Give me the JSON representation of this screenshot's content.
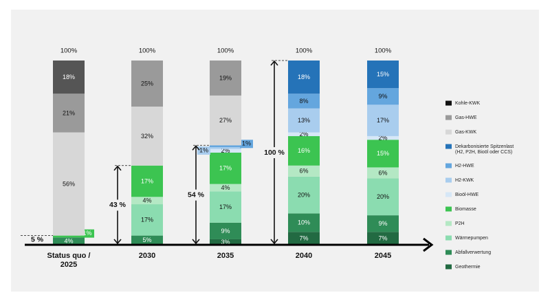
{
  "colors": {
    "Kohle-KWK": "#111111",
    "Gas-HWE": "#9a9a9a",
    "Gas-KWK": "#d7d7d7",
    "Dekarbonisierte Spitzenlast": "#2573b8",
    "H2-HWE": "#64a6de",
    "H2-KWK": "#a9cdee",
    "Bioöl-HWE": "#d6e7f7",
    "Biomasse": "#3cc451",
    "P2H": "#b4e8c4",
    "Wärmepumpen": "#8bdcb0",
    "Abfallverwertung": "#2f8c57",
    "Geothermie": "#226a42",
    "top_segment_dark": "#555555"
  },
  "chart_data": {
    "type": "bar",
    "stacked": true,
    "categories": [
      "Status quo / 2025",
      "2030",
      "2035",
      "2040",
      "2045"
    ],
    "totals": [
      "100%",
      "100%",
      "100%",
      "100%",
      "100%"
    ],
    "ylim": [
      0,
      100
    ],
    "grid": false,
    "legend_position": "right",
    "legend": [
      {
        "name": "Kohle-KWK",
        "color_key": "Kohle-KWK"
      },
      {
        "name": "Gas-HWE",
        "color_key": "Gas-HWE"
      },
      {
        "name": "Gas-KWK",
        "color_key": "Gas-KWK"
      },
      {
        "name": "Dekarbonisierte Spitzenlast",
        "line2": "(H2, P2H, Bioöl oder CCS)",
        "color_key": "Dekarbonisierte Spitzenlast"
      },
      {
        "name": "H2-HWE",
        "color_key": "H2-HWE"
      },
      {
        "name": "H2-KWK",
        "color_key": "H2-KWK"
      },
      {
        "name": "Bioöl-HWE",
        "color_key": "Bioöl-HWE"
      },
      {
        "name": "Biomasse",
        "color_key": "Biomasse"
      },
      {
        "name": "P2H",
        "color_key": "P2H"
      },
      {
        "name": "Wärmepumpen",
        "color_key": "Wärmepumpen"
      },
      {
        "name": "Abfallverwertung",
        "color_key": "Abfallverwertung"
      },
      {
        "name": "Geothermie",
        "color_key": "Geothermie"
      }
    ],
    "bars": [
      {
        "category": "Status quo / 2025",
        "segments": [
          {
            "series": "Abfallverwertung",
            "value": 4,
            "label": "4%"
          },
          {
            "series": "Biomasse",
            "value": 1,
            "label": "1%",
            "callout": true
          },
          {
            "series": "Gas-KWK",
            "value": 56,
            "label": "56%"
          },
          {
            "series": "Gas-HWE",
            "value": 21,
            "label": "21%"
          },
          {
            "series": "Kohle-KWK",
            "value": 18,
            "label": "18%",
            "color_key": "top_segment_dark"
          }
        ]
      },
      {
        "category": "2030",
        "segments": [
          {
            "series": "Abfallverwertung",
            "value": 5,
            "label": "5%"
          },
          {
            "series": "Wärmepumpen",
            "value": 17,
            "label": "17%"
          },
          {
            "series": "P2H",
            "value": 4,
            "label": "4%"
          },
          {
            "series": "Biomasse",
            "value": 17,
            "label": "17%"
          },
          {
            "series": "Gas-KWK",
            "value": 32,
            "label": "32%"
          },
          {
            "series": "Gas-HWE",
            "value": 25,
            "label": "25%"
          }
        ]
      },
      {
        "category": "2035",
        "segments": [
          {
            "series": "Geothermie",
            "value": 3,
            "label": "3%"
          },
          {
            "series": "Abfallverwertung",
            "value": 9,
            "label": "9%"
          },
          {
            "series": "Wärmepumpen",
            "value": 17,
            "label": "17%"
          },
          {
            "series": "P2H",
            "value": 4,
            "label": "4%"
          },
          {
            "series": "Biomasse",
            "value": 17,
            "label": "17%"
          },
          {
            "series": "Bioöl-HWE",
            "value": 2,
            "label": "2%"
          },
          {
            "series": "H2-KWK",
            "value": 1,
            "label": "1%",
            "callout": "left"
          },
          {
            "series": "H2-HWE",
            "value": 1,
            "label": "1%",
            "callout": "right"
          },
          {
            "series": "Gas-KWK",
            "value": 27,
            "label": "27%"
          },
          {
            "series": "Gas-HWE",
            "value": 19,
            "label": "19%"
          }
        ]
      },
      {
        "category": "2040",
        "segments": [
          {
            "series": "Geothermie",
            "value": 7,
            "label": "7%"
          },
          {
            "series": "Abfallverwertung",
            "value": 10,
            "label": "10%"
          },
          {
            "series": "Wärmepumpen",
            "value": 20,
            "label": "20%"
          },
          {
            "series": "P2H",
            "value": 6,
            "label": "6%"
          },
          {
            "series": "Biomasse",
            "value": 16,
            "label": "16%"
          },
          {
            "series": "Bioöl-HWE",
            "value": 2,
            "label": "2%"
          },
          {
            "series": "H2-KWK",
            "value": 13,
            "label": "13%"
          },
          {
            "series": "H2-HWE",
            "value": 8,
            "label": "8%"
          },
          {
            "series": "Dekarbonisierte Spitzenlast",
            "value": 18,
            "label": "18%"
          }
        ]
      },
      {
        "category": "2045",
        "segments": [
          {
            "series": "Geothermie",
            "value": 7,
            "label": "7%"
          },
          {
            "series": "Abfallverwertung",
            "value": 9,
            "label": "9%"
          },
          {
            "series": "Wärmepumpen",
            "value": 20,
            "label": "20%"
          },
          {
            "series": "P2H",
            "value": 6,
            "label": "6%"
          },
          {
            "series": "Biomasse",
            "value": 15,
            "label": "15%"
          },
          {
            "series": "Bioöl-HWE",
            "value": 2,
            "label": "2%"
          },
          {
            "series": "H2-KWK",
            "value": 17,
            "label": "17%"
          },
          {
            "series": "H2-HWE",
            "value": 9,
            "label": "9%"
          },
          {
            "series": "Dekarbonisierte Spitzenlast",
            "value": 15,
            "label": "15%"
          }
        ]
      }
    ],
    "brackets": [
      {
        "category_index": 0,
        "value": 5,
        "label": "5 %",
        "style": "level"
      },
      {
        "category_index": 1,
        "value": 43,
        "label": "43 %",
        "style": "arrow"
      },
      {
        "category_index": 2,
        "value": 54,
        "label": "54 %",
        "style": "arrow"
      },
      {
        "category_index": 3,
        "value": 100,
        "label": "100 %",
        "style": "arrow"
      }
    ]
  }
}
